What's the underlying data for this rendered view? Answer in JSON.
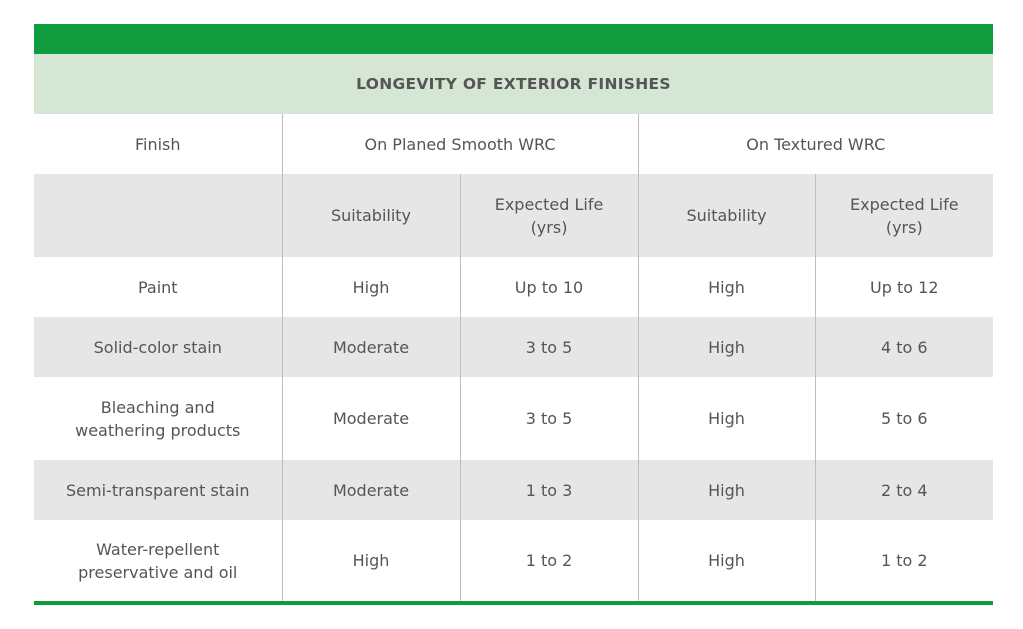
{
  "title": "LONGEVITY OF EXTERIOR FINISHES",
  "header": {
    "finish": "Finish",
    "smooth": "On Planed Smooth WRC",
    "textured": "On Textured WRC"
  },
  "subheader": {
    "suitability": "Suitability",
    "expected_life_1": "Expected Life",
    "expected_life_2": "(yrs)"
  },
  "rows": [
    {
      "finish": [
        "Paint"
      ],
      "smooth_suit": "High",
      "smooth_life": "Up to 10",
      "tex_suit": "High",
      "tex_life": "Up to 12"
    },
    {
      "finish": [
        "Solid-color stain"
      ],
      "smooth_suit": "Moderate",
      "smooth_life": "3 to 5",
      "tex_suit": "High",
      "tex_life": "4 to 6"
    },
    {
      "finish": [
        "Bleaching and",
        "weathering products"
      ],
      "smooth_suit": "Moderate",
      "smooth_life": "3 to 5",
      "tex_suit": "High",
      "tex_life": "5 to 6"
    },
    {
      "finish": [
        "Semi-transparent stain"
      ],
      "smooth_suit": "Moderate",
      "smooth_life": "1 to 3",
      "tex_suit": "High",
      "tex_life": "2 to 4"
    },
    {
      "finish": [
        "Water-repellent",
        "preservative and oil"
      ],
      "smooth_suit": "High",
      "smooth_life": "1 to 2",
      "tex_suit": "High",
      "tex_life": "1 to 2"
    }
  ],
  "colors": {
    "accent_green": "#109b3f",
    "title_band": "#d5e7d4",
    "row_gray": "#e6e6e6",
    "text": "#555555"
  }
}
